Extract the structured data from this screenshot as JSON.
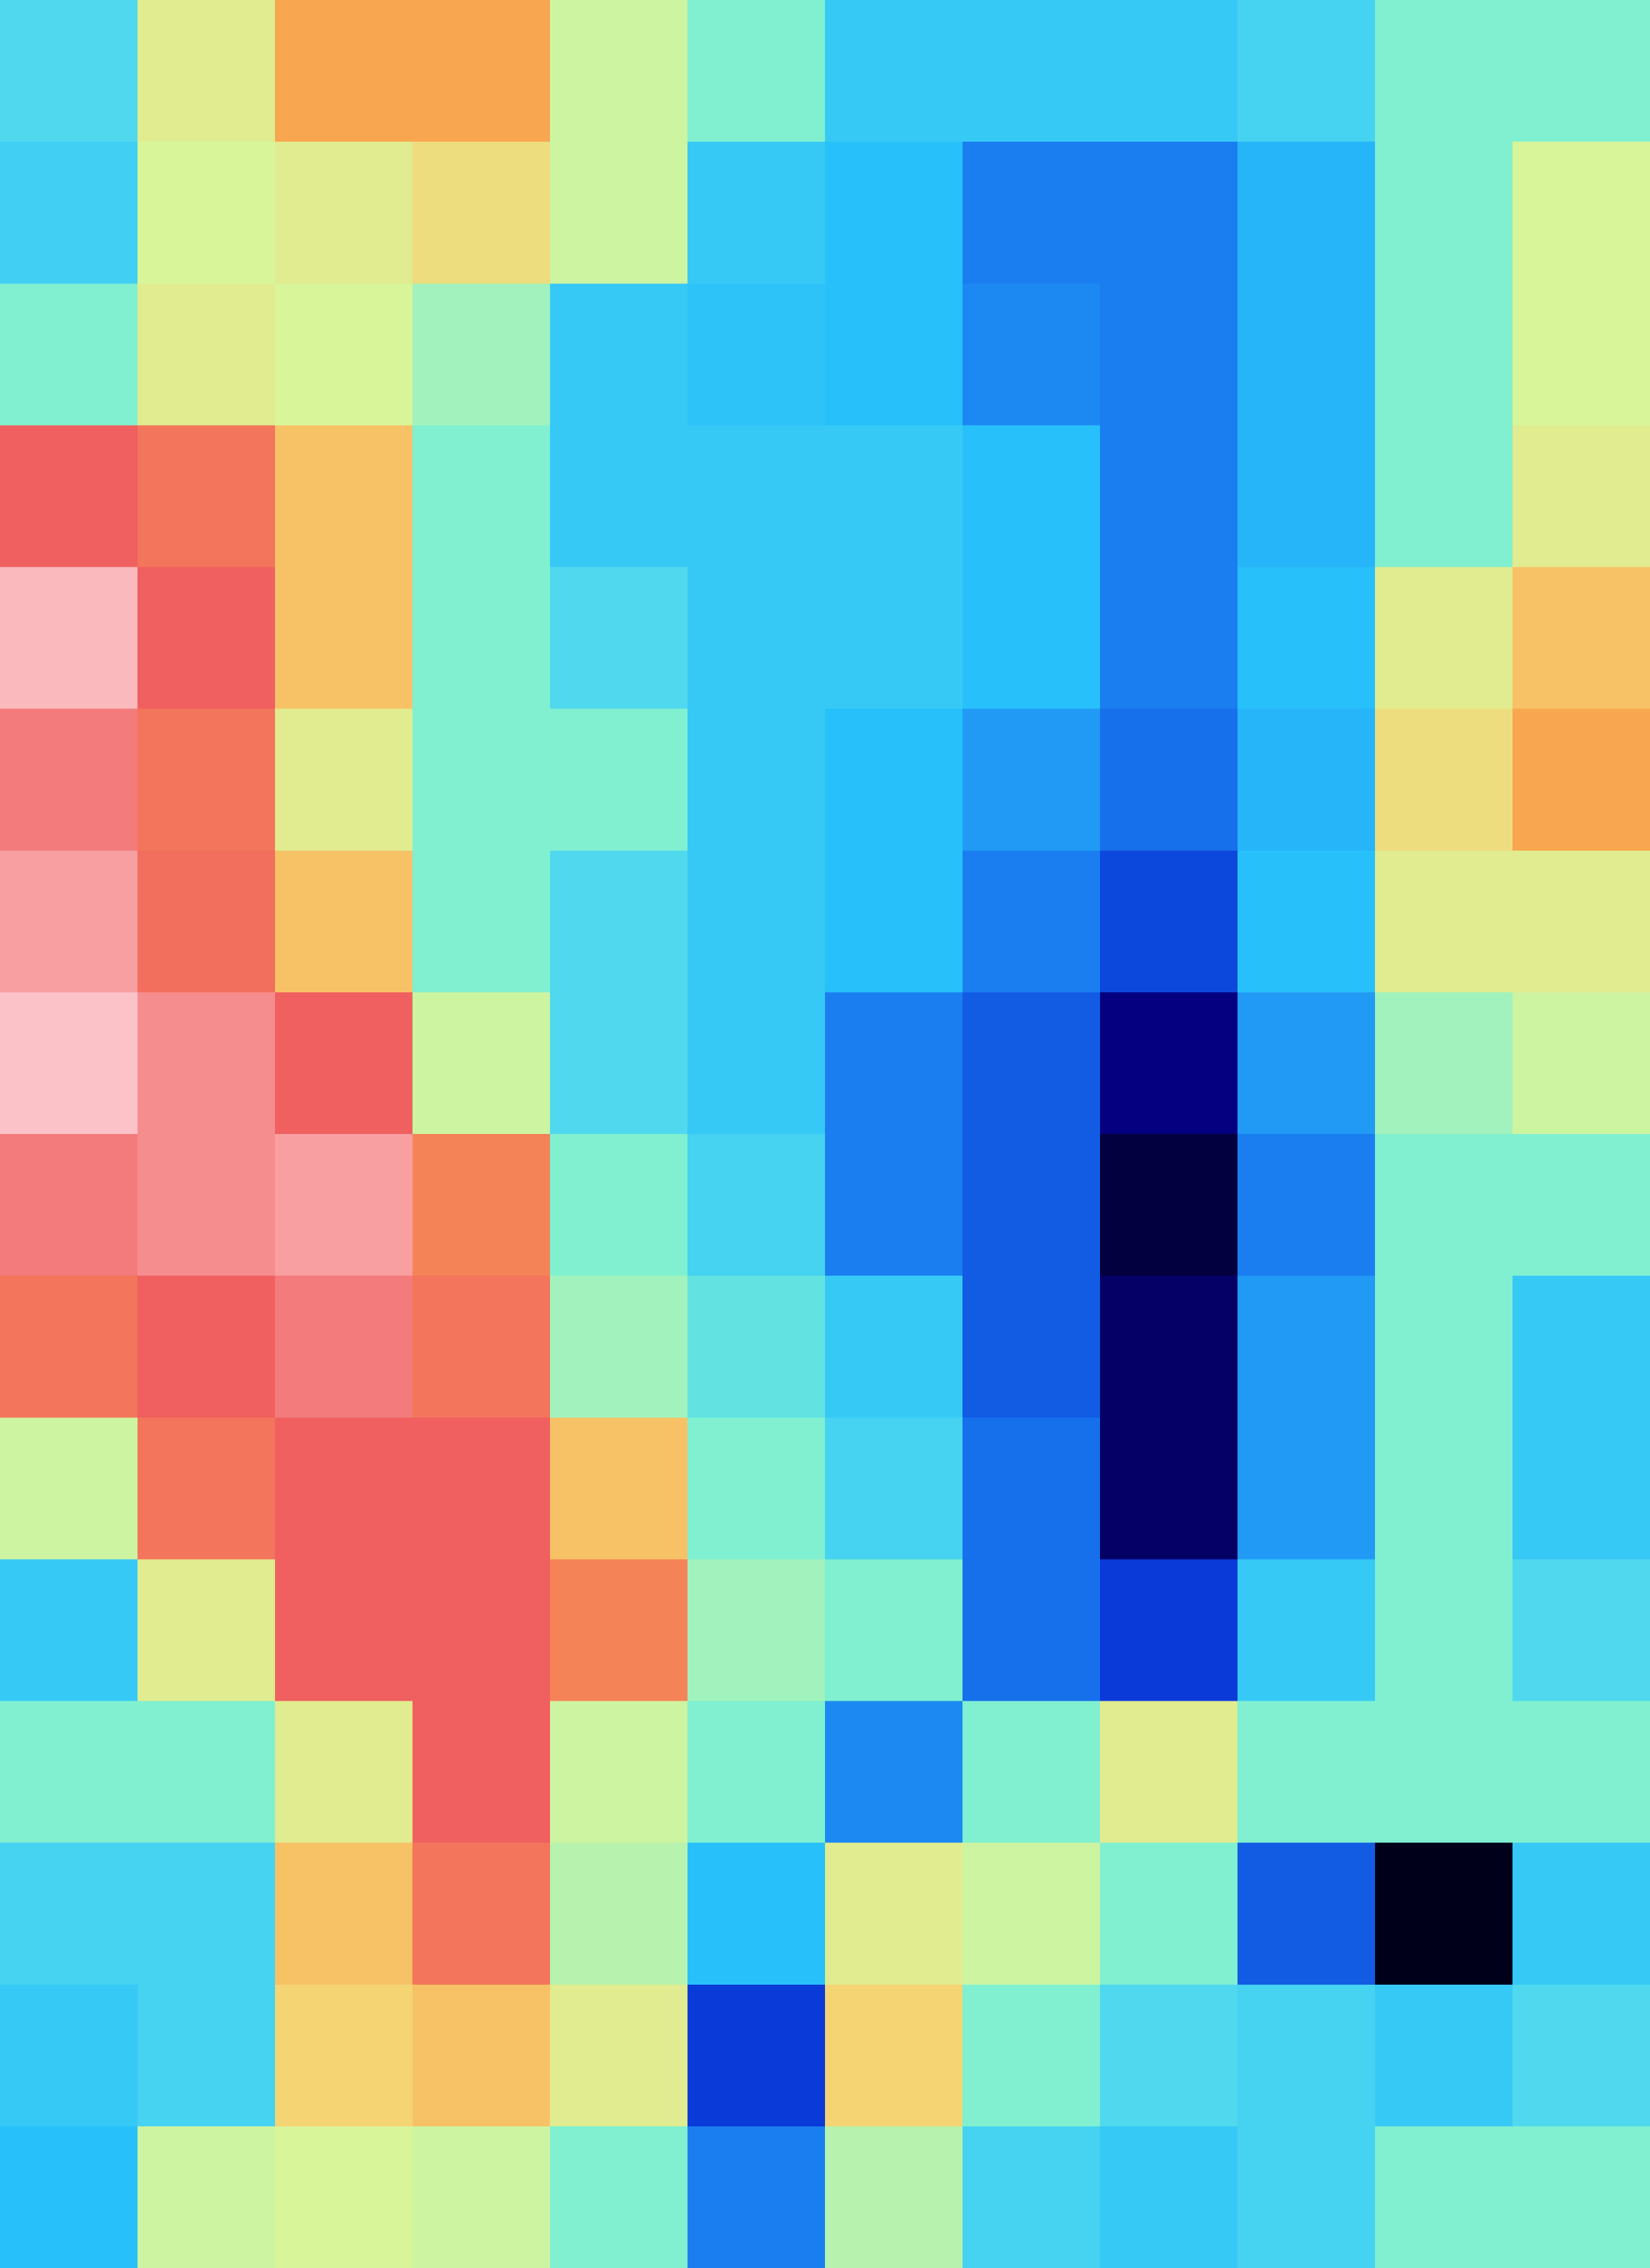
{
  "chart_data": {
    "type": "heatmap",
    "zlim": [
      0,
      1
    ],
    "colorscale": [
      [
        0,
        "#000000"
      ],
      [
        0.1,
        "#050080"
      ],
      [
        0.2,
        "#0a3ad8"
      ],
      [
        0.3,
        "#1a7ef0"
      ],
      [
        0.42,
        "#28c0fa"
      ],
      [
        0.5,
        "#50d8ee"
      ],
      [
        0.55,
        "#80f0d0"
      ],
      [
        0.63,
        "#d8f59a"
      ],
      [
        0.7,
        "#f5d474"
      ],
      [
        0.75,
        "#f9a650"
      ],
      [
        0.85,
        "#f06060"
      ],
      [
        1,
        "#ffe6ec"
      ]
    ],
    "z": [
      [
        0.5,
        0.65,
        0.75,
        0.75,
        0.62,
        0.55,
        0.45,
        0.45,
        0.45,
        0.48,
        0.55,
        0.55
      ],
      [
        0.47,
        0.63,
        0.65,
        0.68,
        0.62,
        0.45,
        0.42,
        0.3,
        0.3,
        0.4,
        0.55,
        0.63
      ],
      [
        0.55,
        0.65,
        0.63,
        0.58,
        0.45,
        0.43,
        0.42,
        0.32,
        0.3,
        0.4,
        0.55,
        0.63
      ],
      [
        0.85,
        0.82,
        0.72,
        0.55,
        0.45,
        0.45,
        0.45,
        0.42,
        0.3,
        0.4,
        0.55,
        0.65
      ],
      [
        0.95,
        0.85,
        0.72,
        0.55,
        0.5,
        0.45,
        0.45,
        0.42,
        0.3,
        0.42,
        0.65,
        0.72
      ],
      [
        0.88,
        0.82,
        0.65,
        0.55,
        0.55,
        0.45,
        0.42,
        0.35,
        0.28,
        0.4,
        0.68,
        0.75
      ],
      [
        0.92,
        0.83,
        0.72,
        0.55,
        0.5,
        0.45,
        0.42,
        0.3,
        0.22,
        0.42,
        0.65,
        0.65
      ],
      [
        0.96,
        0.9,
        0.85,
        0.62,
        0.5,
        0.45,
        0.3,
        0.25,
        0.1,
        0.35,
        0.58,
        0.62
      ],
      [
        0.88,
        0.9,
        0.92,
        0.8,
        0.55,
        0.48,
        0.3,
        0.25,
        0.05,
        0.3,
        0.55,
        0.55
      ],
      [
        0.82,
        0.85,
        0.88,
        0.82,
        0.58,
        0.52,
        0.45,
        0.25,
        0.08,
        0.35,
        0.55,
        0.45
      ],
      [
        0.62,
        0.82,
        0.85,
        0.85,
        0.72,
        0.55,
        0.48,
        0.28,
        0.08,
        0.35,
        0.55,
        0.45
      ],
      [
        0.45,
        0.65,
        0.85,
        0.85,
        0.8,
        0.58,
        0.55,
        0.28,
        0.2,
        0.45,
        0.55,
        0.5
      ],
      [
        0.55,
        0.55,
        0.65,
        0.85,
        0.62,
        0.55,
        0.32,
        0.55,
        0.65,
        0.55,
        0.55,
        0.55
      ],
      [
        0.48,
        0.48,
        0.72,
        0.82,
        0.6,
        0.42,
        0.65,
        0.62,
        0.55,
        0.25,
        0.02,
        0.45
      ],
      [
        0.45,
        0.48,
        0.7,
        0.72,
        0.65,
        0.2,
        0.7,
        0.55,
        0.5,
        0.48,
        0.45,
        0.5
      ],
      [
        0.42,
        0.62,
        0.63,
        0.62,
        0.55,
        0.3,
        0.6,
        0.48,
        0.45,
        0.48,
        0.55,
        0.55
      ]
    ]
  }
}
